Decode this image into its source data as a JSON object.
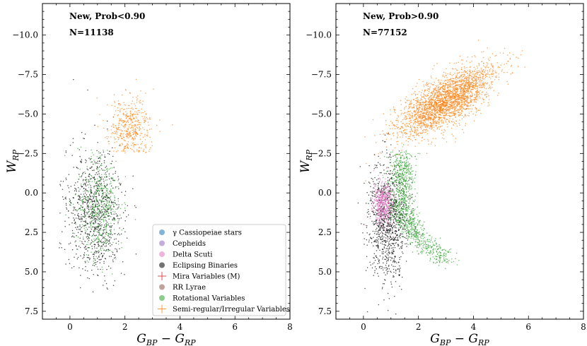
{
  "chart_data": [
    {
      "type": "scatter",
      "panel": "left",
      "xlabel": "G_BP - G_RP",
      "ylabel": "W_RP",
      "xlim": [
        -1,
        8
      ],
      "ylim": [
        8,
        -12
      ],
      "y_inverted": true,
      "xticks": [
        0,
        2,
        4,
        6,
        8
      ],
      "yticks": [
        -10.0,
        -7.5,
        -5.0,
        -2.5,
        0.0,
        2.5,
        5.0,
        7.5
      ],
      "annotations": [
        "New, Prob<0.90",
        "N=11138"
      ],
      "legend_position": "lower-right",
      "series": [
        {
          "name": "Eclipsing Binaries",
          "color": "#000000",
          "cx": 0.9,
          "cy": 1.2,
          "sx": 0.5,
          "sy": 2.0,
          "n": 900
        },
        {
          "name": "Rotational Variables",
          "color": "#2ca02c",
          "cx": 1.1,
          "cy": 1.0,
          "sx": 0.4,
          "sy": 1.6,
          "n": 500
        },
        {
          "name": "Semi-regular/Irregular Variables",
          "color": "#ff7f0e",
          "cx": 2.2,
          "cy": -4.2,
          "sx": 0.4,
          "sy": 1.0,
          "n": 450
        }
      ]
    },
    {
      "type": "scatter",
      "panel": "right",
      "xlabel": "G_BP - G_RP",
      "ylabel": "W_RP",
      "xlim": [
        -1,
        8
      ],
      "ylim": [
        8,
        -12
      ],
      "y_inverted": true,
      "xticks": [
        0,
        2,
        4,
        6,
        8
      ],
      "yticks": [
        -10.0,
        -7.5,
        -5.0,
        -2.5,
        0.0,
        2.5,
        5.0,
        7.5
      ],
      "annotations": [
        "New, Prob>0.90",
        "N=77152"
      ],
      "series": [
        {
          "name": "Semi-regular/Irregular Variables",
          "color": "#ff7f0e",
          "cx": 3.0,
          "cy": -5.8,
          "sx": 0.8,
          "sy": 1.3,
          "n": 2600
        },
        {
          "name": "Eclipsing Binaries",
          "color": "#000000",
          "cx": 0.9,
          "cy": 1.8,
          "sx": 0.35,
          "sy": 1.8,
          "n": 1000
        },
        {
          "name": "Rotational Variables",
          "color": "#2ca02c",
          "cx": 1.7,
          "cy": 1.5,
          "sx": 0.4,
          "sy": 1.5,
          "n": 1100
        },
        {
          "name": "Delta Scuti",
          "color": "#e377c2",
          "cx": 0.7,
          "cy": 0.6,
          "sx": 0.18,
          "sy": 0.7,
          "n": 500
        }
      ]
    }
  ],
  "legend": [
    {
      "label": "γ Cassiopeiae stars",
      "color": "#1f77b4",
      "marker": "dot"
    },
    {
      "label": "Cepheids",
      "color": "#9467bd",
      "marker": "dot"
    },
    {
      "label": "Delta Scuti",
      "color": "#e377c2",
      "marker": "dot"
    },
    {
      "label": "Eclipsing Binaries",
      "color": "#000000",
      "marker": "dot"
    },
    {
      "label": "Mira Variables (M)",
      "color": "#d62728",
      "marker": "plus"
    },
    {
      "label": "RR Lyrae",
      "color": "#8c564b",
      "marker": "dot"
    },
    {
      "label": "Rotational Variables",
      "color": "#2ca02c",
      "marker": "dot"
    },
    {
      "label": "Semi-regular/Irregular Variables",
      "color": "#ff7f0e",
      "marker": "plus"
    }
  ]
}
